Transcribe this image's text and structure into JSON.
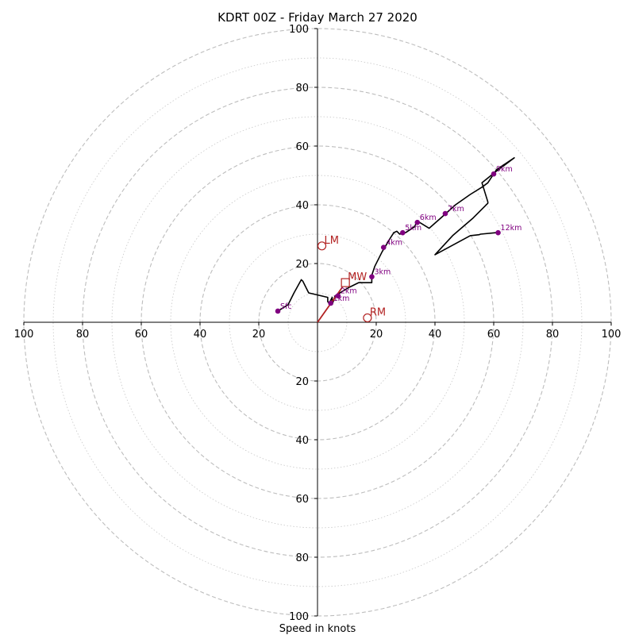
{
  "chart_data": {
    "type": "hodograph",
    "title": "KDRT 00Z - Friday March 27 2020",
    "xlabel": "Speed in knots",
    "ring_max": 100,
    "ring_step_labeled": 20,
    "ring_step_minor": 10,
    "x_tick_labels": [
      "100",
      "80",
      "60",
      "40",
      "20",
      "20",
      "40",
      "60",
      "80",
      "100"
    ],
    "x_tick_values": [
      -100,
      -80,
      -60,
      -40,
      -20,
      20,
      40,
      60,
      80,
      100
    ],
    "y_tick_labels": [
      "100",
      "80",
      "60",
      "40",
      "20",
      "20",
      "40",
      "60",
      "80",
      "100"
    ],
    "y_tick_values": [
      100,
      80,
      60,
      40,
      20,
      -20,
      -40,
      -60,
      -80,
      -100
    ],
    "grid": true,
    "colors": {
      "trace": "#000000",
      "levels": "#800080",
      "motion": "#b22222",
      "grid": "#bdbdbd"
    },
    "trace": [
      [
        -13.5,
        3.8
      ],
      [
        -10,
        6
      ],
      [
        -8,
        10
      ],
      [
        -5.5,
        14.5
      ],
      [
        -5,
        14
      ],
      [
        -3,
        10
      ],
      [
        3.5,
        8.5
      ],
      [
        3.5,
        7
      ],
      [
        4,
        6.5
      ],
      [
        5,
        8.5
      ],
      [
        5,
        6
      ],
      [
        6,
        9
      ],
      [
        8.5,
        10.5
      ],
      [
        11,
        12
      ],
      [
        14,
        13.5
      ],
      [
        18.5,
        13.5
      ],
      [
        18.5,
        16
      ],
      [
        19.5,
        19
      ],
      [
        22,
        24
      ],
      [
        25,
        29
      ],
      [
        26,
        30.5
      ],
      [
        27,
        31
      ],
      [
        28,
        30
      ],
      [
        29,
        30.3
      ],
      [
        30,
        30.5
      ],
      [
        33,
        32.5
      ],
      [
        34,
        34.5
      ],
      [
        38,
        32
      ],
      [
        42,
        35.5
      ],
      [
        47,
        40
      ],
      [
        52,
        43.5
      ],
      [
        56,
        46
      ],
      [
        58,
        47.5
      ],
      [
        60,
        50.5
      ],
      [
        61,
        52
      ],
      [
        67,
        56
      ],
      [
        61,
        51.5
      ],
      [
        56,
        47.5
      ],
      [
        58,
        41
      ],
      [
        58,
        40.5
      ],
      [
        53,
        35.5
      ],
      [
        46,
        29.5
      ],
      [
        40,
        23
      ],
      [
        52,
        29.5
      ],
      [
        55,
        29.8
      ],
      [
        55.5,
        30
      ],
      [
        61,
        30.5
      ],
      [
        61.5,
        30.8
      ]
    ],
    "levels": [
      {
        "label": "Sfc",
        "u": -13.5,
        "v": 3.8
      },
      {
        "label": "1km",
        "u": 4.5,
        "v": 6.5
      },
      {
        "label": "2km",
        "u": 7,
        "v": 9
      },
      {
        "label": "3km",
        "u": 18.5,
        "v": 15.5
      },
      {
        "label": "4km",
        "u": 22.5,
        "v": 25.5
      },
      {
        "label": "5km",
        "u": 29,
        "v": 30.5
      },
      {
        "label": "6km",
        "u": 34,
        "v": 34
      },
      {
        "label": "7km",
        "u": 43.5,
        "v": 37
      },
      {
        "label": "9km",
        "u": 60,
        "v": 50.5
      },
      {
        "label": "12km",
        "u": 61.5,
        "v": 30.5
      }
    ],
    "motions": [
      {
        "label": "LM",
        "u": 1.5,
        "v": 26,
        "marker": "circle"
      },
      {
        "label": "MW",
        "u": 9.5,
        "v": 13.5,
        "marker": "square"
      },
      {
        "label": "RM",
        "u": 17,
        "v": 1.5,
        "marker": "circle"
      }
    ],
    "shear_vector": {
      "u": 8.5,
      "v": 12
    }
  }
}
